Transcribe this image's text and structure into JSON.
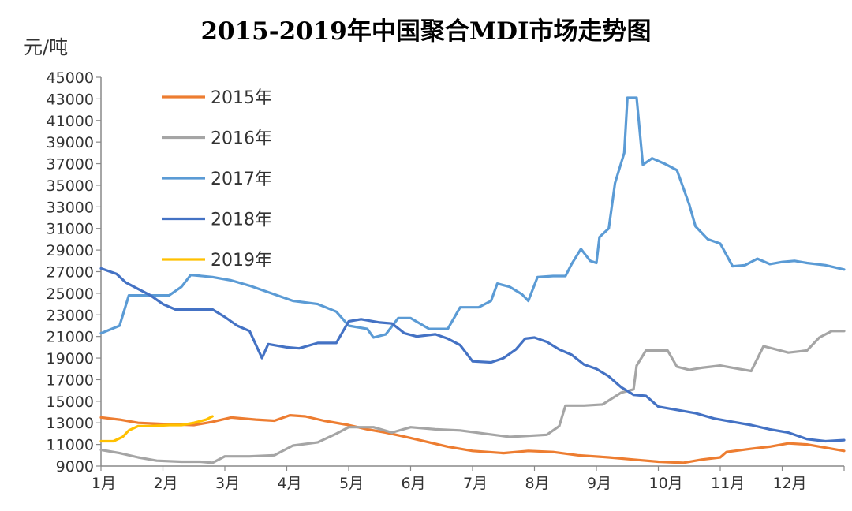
{
  "chart_data": {
    "type": "line",
    "title": "2015-2019年中国聚合MDI市场走势图",
    "ylabel": "元/吨",
    "xlabel": "",
    "ylim": [
      9000,
      45000
    ],
    "xlim": [
      1,
      13
    ],
    "y_ticks": [
      9000,
      11000,
      13000,
      15000,
      17000,
      19000,
      21000,
      23000,
      25000,
      27000,
      29000,
      31000,
      33000,
      35000,
      37000,
      39000,
      41000,
      43000,
      45000
    ],
    "x_ticks": [
      {
        "x": 1,
        "label": "1月"
      },
      {
        "x": 2,
        "label": "2月"
      },
      {
        "x": 3,
        "label": "3月"
      },
      {
        "x": 4,
        "label": "4月"
      },
      {
        "x": 5,
        "label": "5月"
      },
      {
        "x": 6,
        "label": "6月"
      },
      {
        "x": 7,
        "label": "7月"
      },
      {
        "x": 8,
        "label": "8月"
      },
      {
        "x": 9,
        "label": "9月"
      },
      {
        "x": 10,
        "label": "10月"
      },
      {
        "x": 11,
        "label": "11月"
      },
      {
        "x": 12,
        "label": "12月"
      }
    ],
    "legend": "top-left",
    "grid": false,
    "series": [
      {
        "name": "2015年",
        "color": "#ED7D31",
        "points": [
          [
            1,
            13500
          ],
          [
            1.3,
            13300
          ],
          [
            1.6,
            13000
          ],
          [
            2,
            12900
          ],
          [
            2.5,
            12800
          ],
          [
            2.8,
            13100
          ],
          [
            3.1,
            13500
          ],
          [
            3.5,
            13300
          ],
          [
            3.8,
            13200
          ],
          [
            4.05,
            13700
          ],
          [
            4.3,
            13600
          ],
          [
            4.6,
            13200
          ],
          [
            5,
            12800
          ],
          [
            5.3,
            12400
          ],
          [
            5.6,
            12100
          ],
          [
            6,
            11600
          ],
          [
            6.3,
            11200
          ],
          [
            6.6,
            10800
          ],
          [
            7,
            10400
          ],
          [
            7.5,
            10200
          ],
          [
            7.9,
            10400
          ],
          [
            8.3,
            10300
          ],
          [
            8.7,
            10000
          ],
          [
            9.2,
            9800
          ],
          [
            9.6,
            9600
          ],
          [
            10,
            9400
          ],
          [
            10.4,
            9300
          ],
          [
            10.7,
            9600
          ],
          [
            11,
            9800
          ],
          [
            11.1,
            10300
          ],
          [
            11.5,
            10600
          ],
          [
            11.8,
            10800
          ],
          [
            12.1,
            11100
          ],
          [
            12.4,
            11000
          ],
          [
            12.7,
            10700
          ],
          [
            13,
            10400
          ]
        ]
      },
      {
        "name": "2016年",
        "color": "#A5A5A5",
        "points": [
          [
            1,
            10500
          ],
          [
            1.3,
            10200
          ],
          [
            1.6,
            9800
          ],
          [
            1.9,
            9500
          ],
          [
            2.3,
            9400
          ],
          [
            2.6,
            9400
          ],
          [
            2.8,
            9300
          ],
          [
            3,
            9900
          ],
          [
            3.4,
            9900
          ],
          [
            3.8,
            10000
          ],
          [
            4.1,
            10900
          ],
          [
            4.5,
            11200
          ],
          [
            4.8,
            12000
          ],
          [
            5,
            12600
          ],
          [
            5.4,
            12600
          ],
          [
            5.7,
            12100
          ],
          [
            6,
            12600
          ],
          [
            6.4,
            12400
          ],
          [
            6.8,
            12300
          ],
          [
            7.2,
            12000
          ],
          [
            7.6,
            11700
          ],
          [
            7.9,
            11800
          ],
          [
            8.2,
            11900
          ],
          [
            8.4,
            12700
          ],
          [
            8.5,
            14600
          ],
          [
            8.8,
            14600
          ],
          [
            9.1,
            14700
          ],
          [
            9.4,
            15800
          ],
          [
            9.6,
            16100
          ],
          [
            9.65,
            18300
          ],
          [
            9.8,
            19700
          ],
          [
            10.15,
            19700
          ],
          [
            10.3,
            18200
          ],
          [
            10.5,
            17900
          ],
          [
            10.7,
            18100
          ],
          [
            11,
            18300
          ],
          [
            11.3,
            18000
          ],
          [
            11.5,
            17800
          ],
          [
            11.7,
            20100
          ],
          [
            11.9,
            19800
          ],
          [
            12.1,
            19500
          ],
          [
            12.4,
            19700
          ],
          [
            12.6,
            20900
          ],
          [
            12.8,
            21500
          ],
          [
            13,
            21500
          ]
        ]
      },
      {
        "name": "2017年",
        "color": "#5B9BD5",
        "points": [
          [
            1,
            21300
          ],
          [
            1.3,
            22000
          ],
          [
            1.45,
            24800
          ],
          [
            1.8,
            24800
          ],
          [
            2.1,
            24800
          ],
          [
            2.3,
            25600
          ],
          [
            2.45,
            26700
          ],
          [
            2.8,
            26500
          ],
          [
            3.1,
            26200
          ],
          [
            3.4,
            25700
          ],
          [
            3.8,
            24900
          ],
          [
            4.1,
            24300
          ],
          [
            4.5,
            24000
          ],
          [
            4.8,
            23300
          ],
          [
            5,
            22000
          ],
          [
            5.3,
            21700
          ],
          [
            5.4,
            20900
          ],
          [
            5.6,
            21200
          ],
          [
            5.8,
            22700
          ],
          [
            6,
            22700
          ],
          [
            6.3,
            21700
          ],
          [
            6.6,
            21700
          ],
          [
            6.8,
            23700
          ],
          [
            7.1,
            23700
          ],
          [
            7.3,
            24300
          ],
          [
            7.4,
            25900
          ],
          [
            7.6,
            25600
          ],
          [
            7.8,
            24900
          ],
          [
            7.9,
            24300
          ],
          [
            8.05,
            26500
          ],
          [
            8.3,
            26600
          ],
          [
            8.5,
            26600
          ],
          [
            8.6,
            27700
          ],
          [
            8.75,
            29100
          ],
          [
            8.9,
            28000
          ],
          [
            9,
            27800
          ],
          [
            9.05,
            30200
          ],
          [
            9.2,
            31000
          ],
          [
            9.3,
            35200
          ],
          [
            9.45,
            38000
          ],
          [
            9.5,
            43100
          ],
          [
            9.65,
            43100
          ],
          [
            9.75,
            36900
          ],
          [
            9.9,
            37500
          ],
          [
            10.1,
            37000
          ],
          [
            10.3,
            36400
          ],
          [
            10.5,
            33200
          ],
          [
            10.6,
            31200
          ],
          [
            10.8,
            30000
          ],
          [
            11,
            29600
          ],
          [
            11.2,
            27500
          ],
          [
            11.4,
            27600
          ],
          [
            11.6,
            28200
          ],
          [
            11.8,
            27700
          ],
          [
            12,
            27900
          ],
          [
            12.2,
            28000
          ],
          [
            12.4,
            27800
          ],
          [
            12.7,
            27600
          ],
          [
            13,
            27200
          ]
        ]
      },
      {
        "name": "2018年",
        "color": "#4472C4",
        "points": [
          [
            1,
            27300
          ],
          [
            1.25,
            26800
          ],
          [
            1.4,
            26000
          ],
          [
            1.6,
            25400
          ],
          [
            1.8,
            24800
          ],
          [
            2,
            24000
          ],
          [
            2.2,
            23500
          ],
          [
            2.5,
            23500
          ],
          [
            2.8,
            23500
          ],
          [
            3,
            22800
          ],
          [
            3.2,
            22000
          ],
          [
            3.4,
            21500
          ],
          [
            3.6,
            19000
          ],
          [
            3.7,
            20300
          ],
          [
            4,
            20000
          ],
          [
            4.2,
            19900
          ],
          [
            4.5,
            20400
          ],
          [
            4.8,
            20400
          ],
          [
            5,
            22400
          ],
          [
            5.2,
            22600
          ],
          [
            5.5,
            22300
          ],
          [
            5.7,
            22200
          ],
          [
            5.9,
            21300
          ],
          [
            6.1,
            21000
          ],
          [
            6.4,
            21200
          ],
          [
            6.6,
            20800
          ],
          [
            6.8,
            20200
          ],
          [
            7,
            18700
          ],
          [
            7.3,
            18600
          ],
          [
            7.5,
            19000
          ],
          [
            7.7,
            19800
          ],
          [
            7.85,
            20800
          ],
          [
            8,
            20900
          ],
          [
            8.2,
            20500
          ],
          [
            8.4,
            19800
          ],
          [
            8.6,
            19300
          ],
          [
            8.8,
            18400
          ],
          [
            9,
            18000
          ],
          [
            9.2,
            17300
          ],
          [
            9.4,
            16300
          ],
          [
            9.6,
            15600
          ],
          [
            9.8,
            15500
          ],
          [
            10,
            14500
          ],
          [
            10.3,
            14200
          ],
          [
            10.6,
            13900
          ],
          [
            10.9,
            13400
          ],
          [
            11.2,
            13100
          ],
          [
            11.5,
            12800
          ],
          [
            11.8,
            12400
          ],
          [
            12.1,
            12100
          ],
          [
            12.4,
            11500
          ],
          [
            12.7,
            11300
          ],
          [
            13,
            11400
          ]
        ]
      },
      {
        "name": "2019年",
        "color": "#FFC000",
        "points": [
          [
            1,
            11300
          ],
          [
            1.2,
            11300
          ],
          [
            1.35,
            11700
          ],
          [
            1.45,
            12300
          ],
          [
            1.6,
            12700
          ],
          [
            1.8,
            12700
          ],
          [
            2.1,
            12800
          ],
          [
            2.3,
            12800
          ],
          [
            2.5,
            13000
          ],
          [
            2.7,
            13300
          ],
          [
            2.8,
            13600
          ]
        ]
      }
    ]
  }
}
